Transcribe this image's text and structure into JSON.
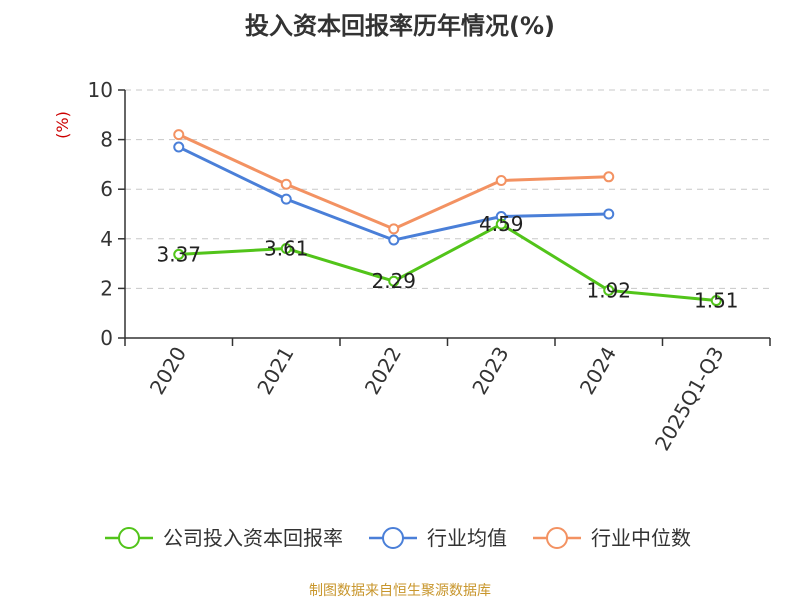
{
  "chart_data": {
    "type": "line",
    "title": "投入资本回报率历年情况(%)",
    "ylabel": "(%)",
    "ylim": [
      0,
      10
    ],
    "yticks": [
      0,
      2,
      4,
      6,
      8,
      10
    ],
    "grid": true,
    "legend_position": "bottom",
    "categories": [
      "2020",
      "2021",
      "2022",
      "2023",
      "2024",
      "2025Q1-Q3"
    ],
    "series": [
      {
        "name": "公司投入资本回报率",
        "color": "#52c41a",
        "show_labels": true,
        "values": [
          3.37,
          3.61,
          2.29,
          4.59,
          1.92,
          1.51
        ]
      },
      {
        "name": "行业均值",
        "color": "#4a7fd8",
        "show_labels": false,
        "values": [
          7.7,
          5.6,
          3.95,
          4.9,
          5.0,
          null
        ]
      },
      {
        "name": "行业中位数",
        "color": "#f39262",
        "show_labels": false,
        "values": [
          8.2,
          6.2,
          4.4,
          6.35,
          6.5,
          null
        ]
      }
    ]
  },
  "source": "制图数据来自恒生聚源数据库"
}
